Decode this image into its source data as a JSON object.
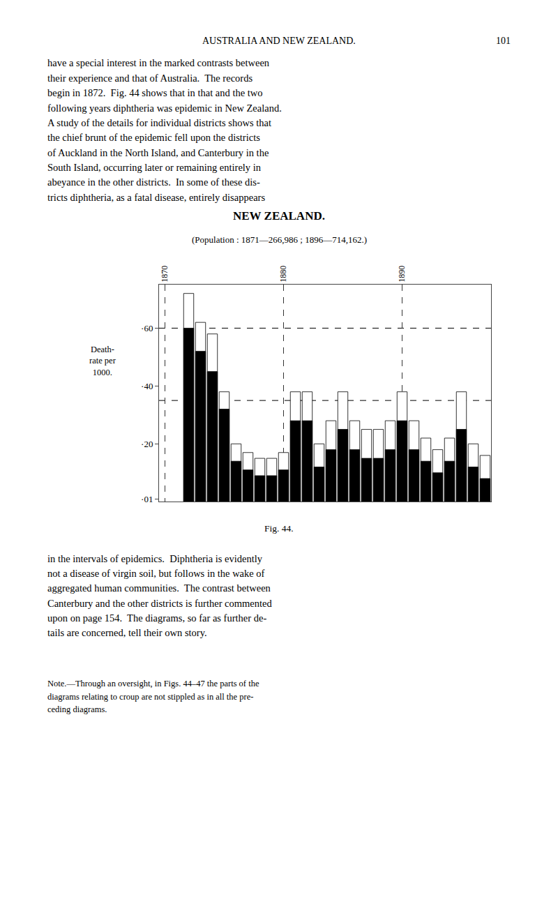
{
  "chart_data": {
    "type": "bar",
    "title": "NEW ZEALAND.",
    "subtitle": "(Population : 1871—266,986 ; 1896—714,162.)",
    "ylabel": "Death-\nrate per\n1000.",
    "x": [
      1872,
      1873,
      1874,
      1875,
      1876,
      1877,
      1878,
      1879,
      1880,
      1881,
      1882,
      1883,
      1884,
      1885,
      1886,
      1887,
      1888,
      1889,
      1890,
      1891,
      1892,
      1893,
      1894,
      1895,
      1896,
      1897
    ],
    "series": [
      {
        "color": "#ffffff",
        "values": [
          0.72,
          0.62,
          0.58,
          0.38,
          0.2,
          0.17,
          0.15,
          0.15,
          0.17,
          0.38,
          0.38,
          0.2,
          0.28,
          0.38,
          0.28,
          0.25,
          0.25,
          0.28,
          0.38,
          0.28,
          0.22,
          0.18,
          0.22,
          0.38,
          0.2,
          0.16
        ]
      },
      {
        "color": "#000000",
        "values": [
          0.6,
          0.52,
          0.45,
          0.32,
          0.14,
          0.11,
          0.09,
          0.09,
          0.11,
          0.28,
          0.28,
          0.12,
          0.18,
          0.25,
          0.18,
          0.15,
          0.15,
          0.18,
          0.28,
          0.18,
          0.14,
          0.1,
          0.14,
          0.25,
          0.12,
          0.08
        ]
      }
    ],
    "xlim": [
      1869.5,
      1897.5
    ],
    "xticks": [
      1870,
      1880,
      1890
    ],
    "ylim": [
      0,
      0.75
    ],
    "yticks": [
      {
        "value": 0.01,
        "label": "·01"
      },
      {
        "value": 0.2,
        "label": "·20"
      },
      {
        "value": 0.4,
        "label": "·40"
      },
      {
        "value": 0.6,
        "label": "·60"
      }
    ],
    "grid": "x",
    "hlines": [
      0.6,
      0.35
    ],
    "annotations": [
      "Fig. 44."
    ]
  },
  "page": {
    "header": "AUSTRALIA AND NEW ZEALAND.",
    "page_number": "101",
    "body_text_before": [
      "have a special interest in the marked contrasts between",
      "their experience and that of Australia.  The records",
      "begin in 1872.  Fig. 44 shows that in that and the two",
      "following years diphtheria was epidemic in New Zealand.",
      "A study of the details for individual districts shows that",
      "the chief brunt of the epidemic fell upon the districts",
      "of Auckland in the North Island, and Canterbury in the",
      "South Island, occurring later or remaining entirely in",
      "abeyance in the other districts.  In some of these dis-",
      "tricts diphtheria, as a fatal disease, entirely disappears"
    ],
    "body_text_after": [
      "in the intervals of epidemics.  Diphtheria is evidently",
      "not a disease of virgin soil, but follows in the wake of",
      "aggregated human communities.  The contrast between",
      "Canterbury and the other districts is further commented",
      "upon on page 154.  The diagrams, so far as further de-",
      "tails are concerned, tell their own story."
    ],
    "note": [
      "Note.—Through an oversight, in Figs. 44–47 the parts of the",
      "diagrams relating to croup are not stippled as in all the pre-",
      "ceding diagrams."
    ]
  }
}
